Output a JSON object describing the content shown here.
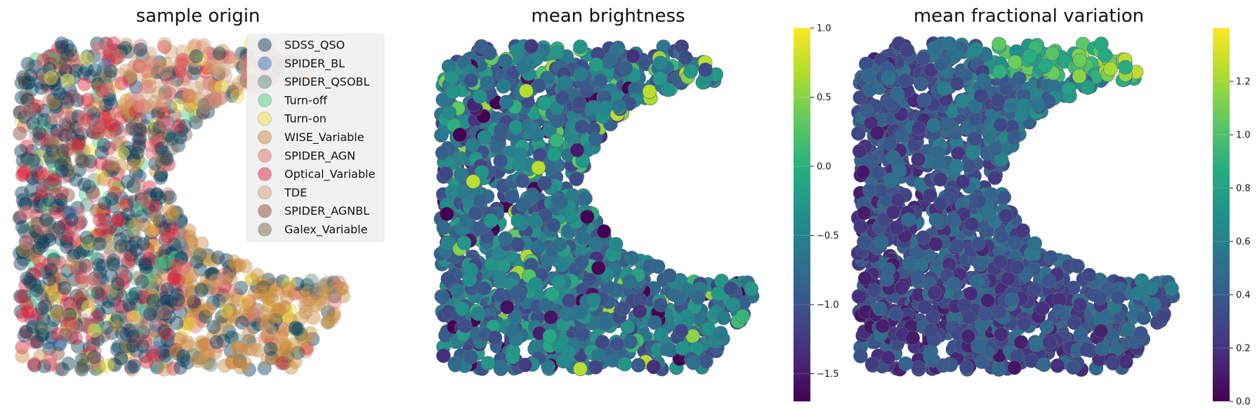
{
  "chart_data": [
    {
      "type": "scatter",
      "title": "sample origin",
      "legend": {
        "position": "top-right",
        "entries": [
          {
            "name": "SDSS_QSO",
            "color": "#0b3d5c"
          },
          {
            "name": "SPIDER_BL",
            "color": "#3b6fb6"
          },
          {
            "name": "SPIDER_QSOBL",
            "color": "#5f8f7e"
          },
          {
            "name": "Turn-off",
            "color": "#4ccf84"
          },
          {
            "name": "Turn-on",
            "color": "#f2e23a"
          },
          {
            "name": "WISE_Variable",
            "color": "#cf8a3a"
          },
          {
            "name": "SPIDER_AGN",
            "color": "#e07070"
          },
          {
            "name": "Optical_Variable",
            "color": "#e0243a"
          },
          {
            "name": "TDE",
            "color": "#d8a27a"
          },
          {
            "name": "SPIDER_AGNBL",
            "color": "#8a4a30"
          },
          {
            "name": "Galex_Variable",
            "color": "#7a6a50"
          }
        ]
      },
      "axes": "off",
      "grid": false
    },
    {
      "type": "scatter",
      "title": "mean brightness",
      "colormap": "viridis",
      "colorbar": {
        "range": [
          -1.7,
          1.0
        ],
        "ticks": [
          "1.0",
          "0.5",
          "0.0",
          "−0.5",
          "−1.0",
          "−1.5"
        ]
      },
      "axes": "off",
      "grid": false
    },
    {
      "type": "scatter",
      "title": "mean fractional variation",
      "colormap": "viridis",
      "colorbar": {
        "range": [
          0.0,
          1.4
        ],
        "ticks": [
          "1.2",
          "1.0",
          "0.8",
          "0.6",
          "0.4",
          "0.2",
          "0.0"
        ]
      },
      "axes": "off",
      "grid": false
    }
  ]
}
